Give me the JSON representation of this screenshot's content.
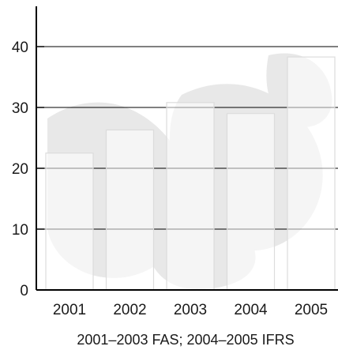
{
  "chart_data": {
    "type": "bar",
    "title": "",
    "categories": [
      "2001",
      "2002",
      "2003",
      "2004",
      "2005"
    ],
    "values": [
      22.5,
      26.3,
      30.8,
      29.0,
      38.3
    ],
    "y_ticks": [
      "0",
      "10",
      "20",
      "30",
      "40"
    ],
    "ylim": [
      0,
      45
    ],
    "grid": true,
    "bar_color": "#ffffff",
    "bar_outline_color": "#dcdcdc",
    "watermark_color": "#e8e8e8",
    "axis_color": "#000000",
    "footnote": "2001–2003 FAS; 2004–2005 IFRS"
  }
}
